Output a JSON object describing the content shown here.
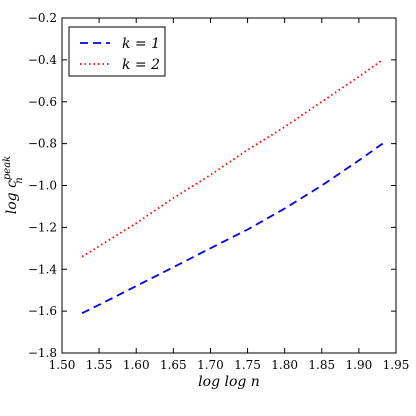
{
  "chart_data": {
    "type": "line",
    "title": "",
    "xlabel": "log log  n",
    "ylabel_main": "log c",
    "ylabel_sub": "n",
    "ylabel_sup": "peak",
    "xlim": [
      1.5,
      1.95
    ],
    "ylim": [
      -1.8,
      -0.2
    ],
    "xticks": [
      1.5,
      1.55,
      1.6,
      1.65,
      1.7,
      1.75,
      1.8,
      1.85,
      1.9,
      1.95
    ],
    "xtick_labels": [
      "1.50",
      "1.55",
      "1.60",
      "1.65",
      "1.70",
      "1.75",
      "1.80",
      "1.85",
      "1.90",
      "1.95"
    ],
    "yticks": [
      -1.8,
      -1.6,
      -1.4,
      -1.2,
      -1.0,
      -0.8,
      -0.6,
      -0.4,
      -0.2
    ],
    "ytick_labels": [
      "−1.8",
      "−1.6",
      "−1.4",
      "−1.2",
      "−1.0",
      "−0.8",
      "−0.6",
      "−0.4",
      "−0.2"
    ],
    "grid": false,
    "legend_position": "top-left",
    "series": [
      {
        "name": "k = 1",
        "color": "#0000ff",
        "style": "dashed",
        "x": [
          1.527,
          1.55,
          1.6,
          1.65,
          1.7,
          1.75,
          1.8,
          1.85,
          1.9,
          1.932
        ],
        "y": [
          -1.61,
          -1.57,
          -1.48,
          -1.39,
          -1.3,
          -1.21,
          -1.11,
          -1.0,
          -0.88,
          -0.8
        ]
      },
      {
        "name": "k = 2",
        "color": "#ff0000",
        "style": "dotted",
        "x": [
          1.527,
          1.55,
          1.6,
          1.65,
          1.7,
          1.75,
          1.8,
          1.85,
          1.9,
          1.932
        ],
        "y": [
          -1.34,
          -1.29,
          -1.18,
          -1.06,
          -0.95,
          -0.83,
          -0.72,
          -0.6,
          -0.48,
          -0.4
        ]
      }
    ]
  }
}
